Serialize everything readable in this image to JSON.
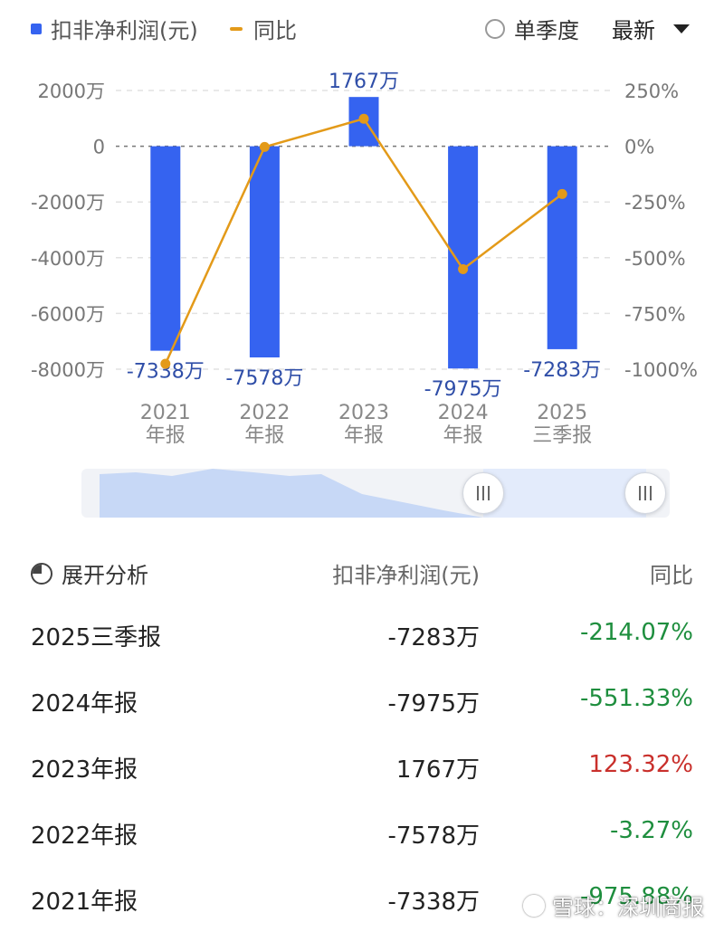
{
  "legend": {
    "bar_label": "扣非净利润(元)",
    "line_label": "同比"
  },
  "controls": {
    "quarter_label": "单季度",
    "latest_label": "最新"
  },
  "colors": {
    "bar": "#3563f0",
    "line": "#e39a19",
    "negative": "#1e8e3e",
    "positive": "#c9302c"
  },
  "chart_data": {
    "type": "bar",
    "categories": [
      "2021\n年报",
      "2022\n年报",
      "2023\n年报",
      "2024\n年报",
      "2025\n三季报"
    ],
    "series": [
      {
        "name": "扣非净利润(元)",
        "type": "bar",
        "axis": "left",
        "values": [
          -7338,
          -7578,
          1767,
          -7975,
          -7283
        ],
        "labels": [
          "-7338万",
          "-7578万",
          "1767万",
          "-7975万",
          "-7283万"
        ]
      },
      {
        "name": "同比",
        "type": "line",
        "axis": "right",
        "values": [
          -975.88,
          -3.27,
          123.32,
          -551.33,
          -214.07
        ]
      }
    ],
    "left_axis": {
      "unit": "万",
      "ticks": [
        2000,
        0,
        -2000,
        -4000,
        -6000,
        -8000
      ],
      "tick_labels": [
        "2000万",
        "0",
        "-2000万",
        "-4000万",
        "-6000万",
        "-8000万"
      ],
      "ylim": [
        -8000,
        2000
      ]
    },
    "right_axis": {
      "ticks": [
        250,
        0,
        -250,
        -500,
        -750,
        -1000
      ],
      "tick_labels": [
        "250%",
        "0%",
        "-250%",
        "-500%",
        "-750%",
        "-1000%"
      ],
      "ylim": [
        -1000,
        250
      ]
    },
    "grid": true,
    "legend_position": "top-left"
  },
  "table": {
    "expand_label": "展开分析",
    "col_value": "扣非净利润(元)",
    "col_yoy": "同比",
    "rows": [
      {
        "period": "2025三季报",
        "value": "-7283万",
        "yoy": "-214.07%",
        "sign": "neg"
      },
      {
        "period": "2024年报",
        "value": "-7975万",
        "yoy": "-551.33%",
        "sign": "neg"
      },
      {
        "period": "2023年报",
        "value": "1767万",
        "yoy": "123.32%",
        "sign": "pos"
      },
      {
        "period": "2022年报",
        "value": "-7578万",
        "yoy": "-3.27%",
        "sign": "neg"
      },
      {
        "period": "2021年报",
        "value": "-7338万",
        "yoy": "-975.88%",
        "sign": "neg"
      }
    ]
  },
  "watermark": "雪球：深圳商报"
}
